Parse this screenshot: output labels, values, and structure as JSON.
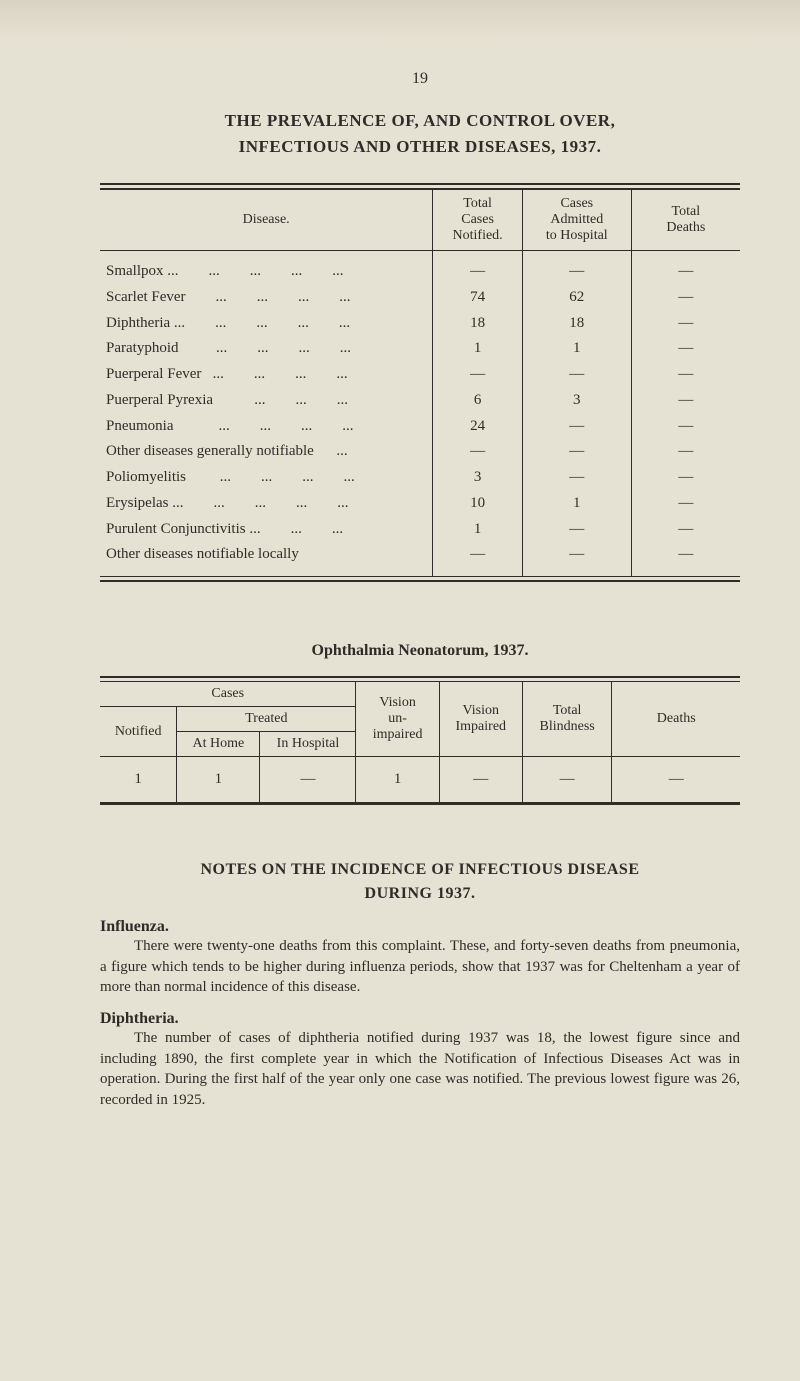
{
  "page_number": "19",
  "section_title_lines": [
    "THE PREVALENCE OF, AND CONTROL OVER,",
    "INFECTIOUS AND OTHER DISEASES, 1937."
  ],
  "disease_table": {
    "headers": {
      "disease": "Disease.",
      "total_cases_notified": "Total\nCases\nNotified.",
      "cases_admitted": "Cases\nAdmitted\nto Hospital",
      "total_deaths": "Total\nDeaths"
    },
    "rows": [
      {
        "name": "Smallpox ...        ...        ...        ...        ...",
        "notified": "—",
        "admitted": "—",
        "deaths": "—"
      },
      {
        "name": "Scarlet Fever        ...        ...        ...        ...",
        "notified": "74",
        "admitted": "62",
        "deaths": "—"
      },
      {
        "name": "Diphtheria ...        ...        ...        ...        ...",
        "notified": "18",
        "admitted": "18",
        "deaths": "—"
      },
      {
        "name": "Paratyphoid          ...        ...        ...        ...",
        "notified": "1",
        "admitted": "1",
        "deaths": "—"
      },
      {
        "name": "Puerperal Fever   ...        ...        ...        ...",
        "notified": "—",
        "admitted": "—",
        "deaths": "—"
      },
      {
        "name": "Puerperal Pyrexia           ...        ...        ...",
        "notified": "6",
        "admitted": "3",
        "deaths": "—"
      },
      {
        "name": "Pneumonia            ...        ...        ...        ...",
        "notified": "24",
        "admitted": "—",
        "deaths": "—"
      },
      {
        "name": "Other diseases generally notifiable      ...",
        "notified": "—",
        "admitted": "—",
        "deaths": "—"
      },
      {
        "name": "Poliomyelitis         ...        ...        ...        ...",
        "notified": "3",
        "admitted": "—",
        "deaths": "—"
      },
      {
        "name": "Erysipelas ...        ...        ...        ...        ...",
        "notified": "10",
        "admitted": "1",
        "deaths": "—"
      },
      {
        "name": "Purulent Conjunctivitis ...        ...        ...",
        "notified": "1",
        "admitted": "—",
        "deaths": "—"
      },
      {
        "name": "Other diseases notifiable locally",
        "notified": "—",
        "admitted": "—",
        "deaths": "—"
      }
    ]
  },
  "ophthalmia_title": "Ophthalmia Neonatorum, 1937.",
  "ophth_table": {
    "headers": {
      "cases": "Cases",
      "notified": "Notified",
      "treated": "Treated",
      "at_home": "At Home",
      "in_hospital": "In Hospital",
      "vision_unimpaired": "Vision\nun-\nimpaired",
      "vision_impaired": "Vision\nImpaired",
      "total_blindness": "Total\nBlindness",
      "deaths": "Deaths"
    },
    "row": {
      "notified": "1",
      "at_home": "1",
      "in_hospital": "—",
      "unimp": "1",
      "imp": "—",
      "blind": "—",
      "deaths": "—"
    }
  },
  "notes_title_lines": [
    "NOTES ON THE INCIDENCE OF INFECTIOUS DISEASE",
    "DURING 1937."
  ],
  "influenza_head": "Influenza.",
  "influenza_para": "There were twenty-one deaths from this complaint. These, and forty-seven deaths from pneumonia, a figure which tends to be higher during influenza periods, show that 1937 was for Cheltenham a year of more than normal incidence of this disease.",
  "diphtheria_head": "Diphtheria.",
  "diphtheria_para": "The number of cases of diphtheria notified during 1937 was 18, the lowest figure since and including 1890, the first complete year in which the Notification of Infectious Diseases Act was in operation. During the first half of the year only one case was notified. The previous lowest figure was 26, recorded in 1925.",
  "colors": {
    "page_bg": "#e6e2d3",
    "text": "#2d2c28",
    "rule": "#2d2c28"
  }
}
